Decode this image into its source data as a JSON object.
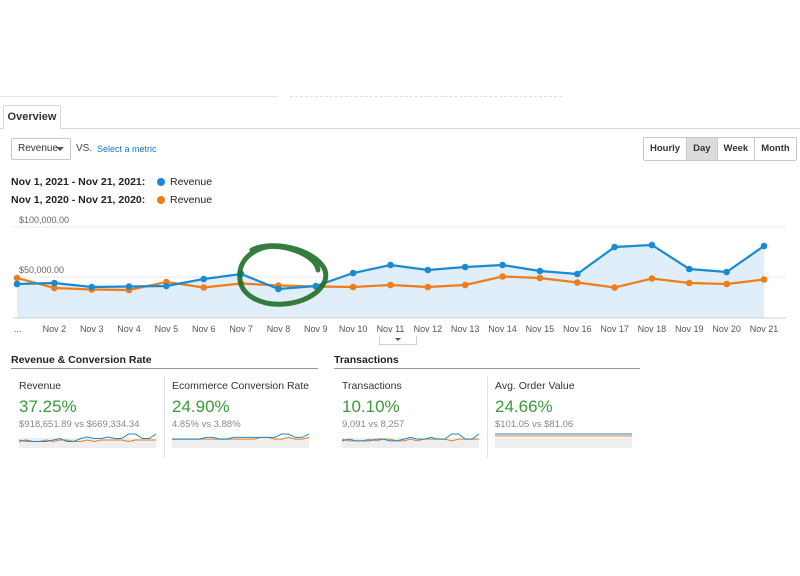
{
  "tabs": [
    {
      "label": "Overview",
      "active": true
    }
  ],
  "metric_selector": {
    "value": "Revenue",
    "vs_label": "VS.",
    "select_metric_link": "Select a metric"
  },
  "range_buttons": [
    {
      "label": "Hourly",
      "active": false
    },
    {
      "label": "Day",
      "active": true
    },
    {
      "label": "Week",
      "active": false
    },
    {
      "label": "Month",
      "active": false
    }
  ],
  "legend": [
    {
      "range": "Nov 1, 2021 - Nov 21, 2021:",
      "metric": "Revenue",
      "color": "#1a8ad2"
    },
    {
      "range": "Nov 1, 2020 - Nov 21, 2020:",
      "metric": "Revenue",
      "color": "#ef7d1a"
    }
  ],
  "chart_data": {
    "type": "line",
    "x": [
      "...",
      "Nov 2",
      "Nov 3",
      "Nov 4",
      "Nov 5",
      "Nov 6",
      "Nov 7",
      "Nov 8",
      "Nov 9",
      "Nov 10",
      "Nov 11",
      "Nov 12",
      "Nov 13",
      "Nov 14",
      "Nov 15",
      "Nov 16",
      "Nov 17",
      "Nov 18",
      "Nov 19",
      "Nov 20",
      "Nov 21"
    ],
    "ytick_labels": [
      "$100,000.00",
      "$50,000.00"
    ],
    "yticks": [
      100000,
      50000
    ],
    "ylim": [
      0,
      100000
    ],
    "grid": true,
    "series": [
      {
        "name": "Nov 1, 2021 - Nov 21, 2021",
        "color": "#1a8ad2",
        "fill": "#dfeef8",
        "values": [
          34000,
          35000,
          31000,
          31500,
          32000,
          39000,
          44000,
          29000,
          32000,
          45000,
          53000,
          48000,
          51000,
          53000,
          47000,
          44000,
          71000,
          73000,
          49000,
          46000,
          72000
        ]
      },
      {
        "name": "Nov 1, 2020 - Nov 21, 2020",
        "color": "#ef7d1a",
        "values": [
          40000,
          30000,
          28500,
          28000,
          36000,
          30500,
          34500,
          32500,
          31500,
          31000,
          33000,
          31000,
          33000,
          41500,
          40000,
          35500,
          30500,
          39500,
          35000,
          34000,
          38500
        ]
      }
    ]
  },
  "sections": [
    {
      "title": "Revenue & Conversion Rate"
    },
    {
      "title": "Transactions"
    }
  ],
  "cards": [
    {
      "title": "Revenue",
      "value": "37.25%",
      "compare": "$918,651.89 vs $669,334.34",
      "spark_a": [
        3,
        4,
        3,
        3,
        3,
        4,
        5,
        3,
        3,
        5,
        6,
        5,
        5,
        6,
        5,
        5,
        8,
        8,
        5,
        5,
        8
      ],
      "spark_b": [
        4,
        3,
        3,
        3,
        4,
        3,
        4,
        4,
        3,
        3,
        4,
        3,
        4,
        4,
        4,
        4,
        3,
        4,
        4,
        4,
        4
      ]
    },
    {
      "title": "Ecommerce Conversion Rate",
      "value": "24.90%",
      "compare": "4.85% vs 3.88%",
      "spark_a": [
        4,
        4,
        4,
        4,
        4,
        5,
        5,
        4,
        4,
        5,
        5,
        5,
        5,
        5,
        5,
        5,
        7,
        7,
        5,
        5,
        7
      ],
      "spark_b": [
        4,
        4,
        4,
        4,
        4,
        4,
        4,
        4,
        4,
        4,
        4,
        4,
        4,
        5,
        5,
        4,
        4,
        5,
        4,
        4,
        5
      ]
    },
    {
      "title": "Transactions",
      "value": "10.10%",
      "compare": "9,091 vs 8,257",
      "spark_a": [
        3,
        4,
        3,
        3,
        3,
        4,
        4,
        3,
        3,
        4,
        5,
        4,
        4,
        5,
        4,
        4,
        7,
        7,
        4,
        4,
        7
      ],
      "spark_b": [
        4,
        3,
        3,
        3,
        4,
        3,
        4,
        4,
        3,
        3,
        4,
        3,
        4,
        4,
        4,
        4,
        3,
        4,
        4,
        4,
        4
      ]
    },
    {
      "title": "Avg. Order Value",
      "value": "24.66%",
      "compare": "$101.05 vs $81.06",
      "spark_a": [
        6,
        6,
        6,
        6,
        6,
        6,
        6,
        6,
        6,
        6,
        6,
        6,
        6,
        6,
        6,
        6,
        6,
        6,
        6,
        6,
        6
      ],
      "spark_b": [
        5,
        5,
        5,
        5,
        5,
        5,
        5,
        5,
        5,
        5,
        5,
        5,
        5,
        5,
        5,
        5,
        5,
        5,
        5,
        5,
        5
      ]
    }
  ],
  "annotation": {
    "type": "hand-drawn-circle",
    "color": "#1f6e2a",
    "around": "Nov 7 - Nov 9"
  }
}
